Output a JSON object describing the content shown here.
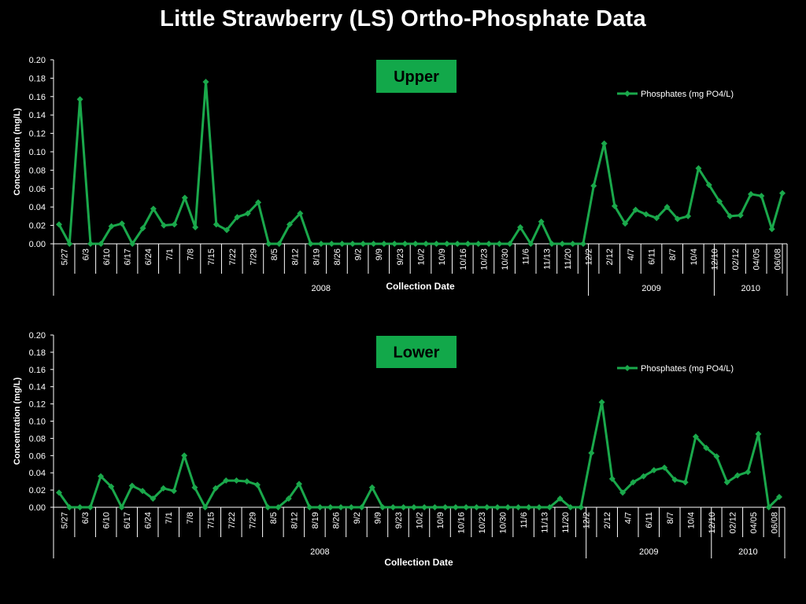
{
  "title": "Little Strawberry (LS) Ortho-Phosphate Data",
  "colors": {
    "series": "#1aa84b",
    "background": "#000000",
    "text": "#ffffff",
    "badge": "#12a84a"
  },
  "chart_data": [
    {
      "type": "line",
      "panel_label": "Upper",
      "ylabel": "Concentration (mg/L)",
      "xlabel": "Collection Date",
      "ylim": [
        0,
        0.2
      ],
      "yticks": [
        "0.00",
        "0.02",
        "0.04",
        "0.06",
        "0.08",
        "0.10",
        "0.12",
        "0.14",
        "0.16",
        "0.18",
        "0.20"
      ],
      "legend": "top-right",
      "tick_labels": [
        "5/27",
        "6/3",
        "6/10",
        "6/17",
        "6/24",
        "7/1",
        "7/8",
        "7/15",
        "7/22",
        "7/29",
        "8/5",
        "8/12",
        "8/19",
        "8/26",
        "9/2",
        "9/9",
        "9/23",
        "10/2",
        "10/9",
        "10/16",
        "10/23",
        "10/30",
        "11/6",
        "11/13",
        "11/20",
        "12/2",
        "2/12",
        "4/7",
        "6/11",
        "8/7",
        "10/4",
        "12/10",
        "02/12",
        "04/05",
        "06/08"
      ],
      "years": [
        {
          "label": "2008",
          "points": 51
        },
        {
          "label": "2009",
          "points": 12
        },
        {
          "label": "2010",
          "points": 7
        }
      ],
      "series": [
        {
          "name": "Phosphates (mg PO4/L)",
          "values": [
            0.021,
            0.0,
            0.157,
            0.0,
            0.0,
            0.019,
            0.022,
            0.0,
            0.017,
            0.038,
            0.02,
            0.021,
            0.05,
            0.018,
            0.176,
            0.021,
            0.015,
            0.029,
            0.033,
            0.045,
            0.0,
            0.0,
            0.021,
            0.033,
            0.0,
            0.0,
            0.0,
            0.0,
            0.0,
            0.0,
            0.0,
            0.0,
            0.0,
            0.0,
            0.0,
            0.0,
            0.0,
            0.0,
            0.0,
            0.0,
            0.0,
            0.0,
            0.0,
            0.0,
            0.018,
            0.0,
            0.024,
            0.0,
            0.0,
            0.0,
            0.0,
            0.063,
            0.109,
            0.041,
            0.022,
            0.037,
            0.032,
            0.028,
            0.04,
            0.027,
            0.03,
            0.082,
            0.064,
            0.046,
            0.03,
            0.031,
            0.054,
            0.052,
            0.016,
            0.055
          ]
        }
      ]
    },
    {
      "type": "line",
      "panel_label": "Lower",
      "ylabel": "Concentration (mg/L)",
      "xlabel": "Collection Date",
      "ylim": [
        0,
        0.2
      ],
      "yticks": [
        "0.00",
        "0.02",
        "0.04",
        "0.06",
        "0.08",
        "0.10",
        "0.12",
        "0.14",
        "0.16",
        "0.18",
        "0.20"
      ],
      "legend": "top-right",
      "tick_labels": [
        "5/27",
        "6/3",
        "6/10",
        "6/17",
        "6/24",
        "7/1",
        "7/8",
        "7/15",
        "7/22",
        "7/29",
        "8/5",
        "8/12",
        "8/19",
        "8/26",
        "9/2",
        "9/9",
        "9/23",
        "10/2",
        "10/9",
        "10/16",
        "10/23",
        "10/30",
        "11/6",
        "11/13",
        "11/20",
        "12/2",
        "2/12",
        "4/7",
        "6/11",
        "8/7",
        "10/4",
        "12/10",
        "02/12",
        "04/05",
        "06/08"
      ],
      "years": [
        {
          "label": "2008",
          "points": 51
        },
        {
          "label": "2009",
          "points": 12
        },
        {
          "label": "2010",
          "points": 7
        }
      ],
      "series": [
        {
          "name": "Phosphates (mg PO4/L)",
          "values": [
            0.017,
            0.0,
            0.0,
            0.0,
            0.036,
            0.024,
            0.0,
            0.025,
            0.019,
            0.01,
            0.022,
            0.019,
            0.06,
            0.023,
            0.0,
            0.022,
            0.031,
            0.031,
            0.03,
            0.026,
            0.0,
            0.0,
            0.01,
            0.027,
            0.0,
            0.0,
            0.0,
            0.0,
            0.0,
            0.0,
            0.023,
            0.0,
            0.0,
            0.0,
            0.0,
            0.0,
            0.0,
            0.0,
            0.0,
            0.0,
            0.0,
            0.0,
            0.0,
            0.0,
            0.0,
            0.0,
            0.0,
            0.0,
            0.01,
            0.0,
            0.0,
            0.063,
            0.122,
            0.033,
            0.017,
            0.029,
            0.036,
            0.043,
            0.046,
            0.032,
            0.029,
            0.082,
            0.069,
            0.059,
            0.029,
            0.037,
            0.041,
            0.085,
            0.0,
            0.012
          ]
        }
      ]
    }
  ]
}
